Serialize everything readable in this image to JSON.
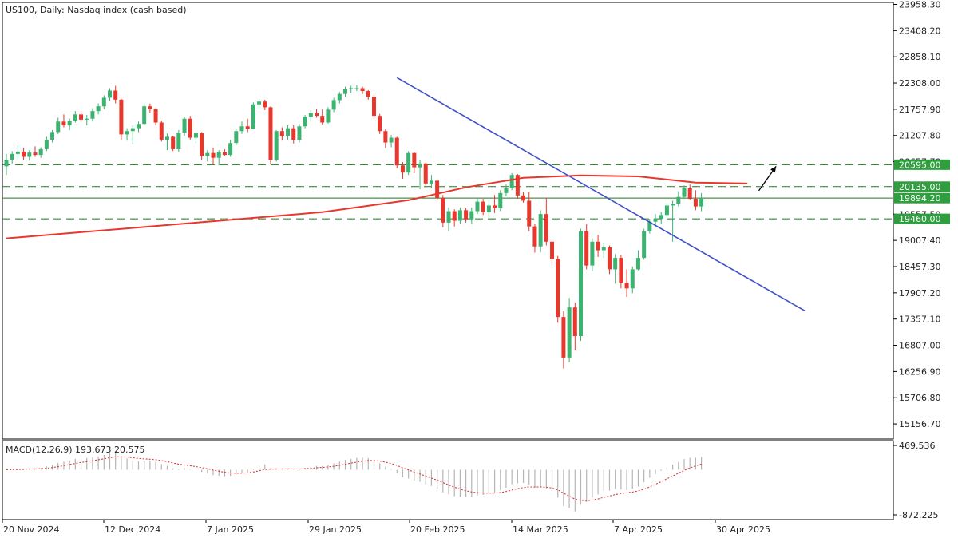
{
  "chart_data": [
    {
      "type": "candlestick",
      "title": "US100, Daily:  Nasdaq index (cash based)",
      "x_dates": [
        "20 Nov 2024",
        "12 Dec 2024",
        "7 Jan 2025",
        "29 Jan 2025",
        "20 Feb 2025",
        "14 Mar 2025",
        "7 Apr 2025",
        "30 Apr 2025"
      ],
      "y_ticks": [
        "23958.30",
        "23408.20",
        "22858.10",
        "22308.00",
        "21757.90",
        "21207.80",
        "20657.70",
        "20107.60",
        "19557.50",
        "19007.40",
        "18457.30",
        "17907.20",
        "17357.10",
        "16807.00",
        "16256.90",
        "15706.80",
        "15156.70"
      ],
      "ylim": [
        14840,
        24000
      ],
      "levels": [
        {
          "value": 20595.0,
          "label": "20595.00",
          "style": "dashed"
        },
        {
          "value": 20135.0,
          "label": "20135.00",
          "style": "dashed"
        },
        {
          "value": 19894.2,
          "label": "19894.20",
          "style": "solid"
        },
        {
          "value": 19460.0,
          "label": "19460.00",
          "style": "dashed"
        }
      ],
      "candles": [
        {
          "o": 20560,
          "h": 20820,
          "l": 20380,
          "c": 20700
        },
        {
          "o": 20700,
          "h": 20880,
          "l": 20620,
          "c": 20820
        },
        {
          "o": 20820,
          "h": 21000,
          "l": 20700,
          "c": 20870
        },
        {
          "o": 20870,
          "h": 20950,
          "l": 20700,
          "c": 20760
        },
        {
          "o": 20760,
          "h": 20900,
          "l": 20680,
          "c": 20850
        },
        {
          "o": 20850,
          "h": 20980,
          "l": 20760,
          "c": 20800
        },
        {
          "o": 20800,
          "h": 20960,
          "l": 20740,
          "c": 20920
        },
        {
          "o": 20920,
          "h": 21180,
          "l": 20880,
          "c": 21120
        },
        {
          "o": 21120,
          "h": 21320,
          "l": 21060,
          "c": 21280
        },
        {
          "o": 21280,
          "h": 21580,
          "l": 21240,
          "c": 21500
        },
        {
          "o": 21500,
          "h": 21650,
          "l": 21380,
          "c": 21420
        },
        {
          "o": 21420,
          "h": 21560,
          "l": 21320,
          "c": 21520
        },
        {
          "o": 21520,
          "h": 21720,
          "l": 21480,
          "c": 21650
        },
        {
          "o": 21650,
          "h": 21720,
          "l": 21500,
          "c": 21540
        },
        {
          "o": 21540,
          "h": 21640,
          "l": 21420,
          "c": 21560
        },
        {
          "o": 21560,
          "h": 21780,
          "l": 21500,
          "c": 21720
        },
        {
          "o": 21720,
          "h": 21880,
          "l": 21650,
          "c": 21820
        },
        {
          "o": 21820,
          "h": 22050,
          "l": 21760,
          "c": 22000
        },
        {
          "o": 22000,
          "h": 22200,
          "l": 21940,
          "c": 22150
        },
        {
          "o": 22150,
          "h": 22250,
          "l": 21880,
          "c": 21960
        },
        {
          "o": 21960,
          "h": 21980,
          "l": 21120,
          "c": 21230
        },
        {
          "o": 21230,
          "h": 21360,
          "l": 21100,
          "c": 21300
        },
        {
          "o": 21300,
          "h": 21420,
          "l": 21020,
          "c": 21360
        },
        {
          "o": 21360,
          "h": 21500,
          "l": 21280,
          "c": 21450
        },
        {
          "o": 21450,
          "h": 21880,
          "l": 21420,
          "c": 21820
        },
        {
          "o": 21820,
          "h": 21880,
          "l": 21680,
          "c": 21760
        },
        {
          "o": 21760,
          "h": 21780,
          "l": 21420,
          "c": 21480
        },
        {
          "o": 21480,
          "h": 21520,
          "l": 21080,
          "c": 21120
        },
        {
          "o": 21120,
          "h": 21250,
          "l": 20900,
          "c": 21180
        },
        {
          "o": 21180,
          "h": 21200,
          "l": 20880,
          "c": 20920
        },
        {
          "o": 20920,
          "h": 21320,
          "l": 20860,
          "c": 21270
        },
        {
          "o": 21270,
          "h": 21600,
          "l": 21200,
          "c": 21560
        },
        {
          "o": 21560,
          "h": 21620,
          "l": 21120,
          "c": 21160
        },
        {
          "o": 21160,
          "h": 21300,
          "l": 21050,
          "c": 21260
        },
        {
          "o": 21260,
          "h": 21280,
          "l": 20700,
          "c": 20780
        },
        {
          "o": 20780,
          "h": 20900,
          "l": 20660,
          "c": 20840
        },
        {
          "o": 20840,
          "h": 20950,
          "l": 20600,
          "c": 20740
        },
        {
          "o": 20740,
          "h": 20900,
          "l": 20580,
          "c": 20860
        },
        {
          "o": 20860,
          "h": 20920,
          "l": 20780,
          "c": 20800
        },
        {
          "o": 20800,
          "h": 21120,
          "l": 20760,
          "c": 21050
        },
        {
          "o": 21050,
          "h": 21340,
          "l": 21000,
          "c": 21300
        },
        {
          "o": 21300,
          "h": 21500,
          "l": 21240,
          "c": 21400
        },
        {
          "o": 21400,
          "h": 21560,
          "l": 21280,
          "c": 21350
        },
        {
          "o": 21350,
          "h": 21900,
          "l": 21340,
          "c": 21860
        },
        {
          "o": 21860,
          "h": 21980,
          "l": 21760,
          "c": 21920
        },
        {
          "o": 21920,
          "h": 21960,
          "l": 21740,
          "c": 21800
        },
        {
          "o": 21800,
          "h": 21820,
          "l": 20600,
          "c": 20700
        },
        {
          "o": 20700,
          "h": 21320,
          "l": 20660,
          "c": 21300
        },
        {
          "o": 21300,
          "h": 21380,
          "l": 21100,
          "c": 21200
        },
        {
          "o": 21200,
          "h": 21420,
          "l": 21120,
          "c": 21360
        },
        {
          "o": 21360,
          "h": 21420,
          "l": 21040,
          "c": 21120
        },
        {
          "o": 21120,
          "h": 21450,
          "l": 21060,
          "c": 21400
        },
        {
          "o": 21400,
          "h": 21640,
          "l": 21360,
          "c": 21600
        },
        {
          "o": 21600,
          "h": 21740,
          "l": 21500,
          "c": 21680
        },
        {
          "o": 21680,
          "h": 21760,
          "l": 21580,
          "c": 21620
        },
        {
          "o": 21620,
          "h": 21760,
          "l": 21440,
          "c": 21480
        },
        {
          "o": 21480,
          "h": 21800,
          "l": 21460,
          "c": 21750
        },
        {
          "o": 21750,
          "h": 22000,
          "l": 21700,
          "c": 21950
        },
        {
          "o": 21950,
          "h": 22120,
          "l": 21880,
          "c": 22080
        },
        {
          "o": 22080,
          "h": 22230,
          "l": 22020,
          "c": 22180
        },
        {
          "o": 22180,
          "h": 22250,
          "l": 22100,
          "c": 22200
        },
        {
          "o": 22200,
          "h": 22260,
          "l": 22140,
          "c": 22200
        },
        {
          "o": 22200,
          "h": 22230,
          "l": 22080,
          "c": 22140
        },
        {
          "o": 22140,
          "h": 22160,
          "l": 21960,
          "c": 22020
        },
        {
          "o": 22020,
          "h": 22060,
          "l": 21550,
          "c": 21620
        },
        {
          "o": 21620,
          "h": 21660,
          "l": 21240,
          "c": 21300
        },
        {
          "o": 21300,
          "h": 21340,
          "l": 20940,
          "c": 21060
        },
        {
          "o": 21060,
          "h": 21220,
          "l": 20960,
          "c": 21160
        },
        {
          "o": 21160,
          "h": 21180,
          "l": 20520,
          "c": 20580
        },
        {
          "o": 20580,
          "h": 20650,
          "l": 20300,
          "c": 20430
        },
        {
          "o": 20430,
          "h": 20880,
          "l": 20380,
          "c": 20840
        },
        {
          "o": 20840,
          "h": 20860,
          "l": 20420,
          "c": 20540
        },
        {
          "o": 20540,
          "h": 20700,
          "l": 20080,
          "c": 20620
        },
        {
          "o": 20620,
          "h": 20640,
          "l": 20150,
          "c": 20200
        },
        {
          "o": 20200,
          "h": 20380,
          "l": 20100,
          "c": 20260
        },
        {
          "o": 20260,
          "h": 20280,
          "l": 19850,
          "c": 19900
        },
        {
          "o": 19900,
          "h": 19960,
          "l": 19280,
          "c": 19380
        },
        {
          "o": 19380,
          "h": 19700,
          "l": 19200,
          "c": 19620
        },
        {
          "o": 19620,
          "h": 19660,
          "l": 19300,
          "c": 19420
        },
        {
          "o": 19420,
          "h": 19700,
          "l": 19360,
          "c": 19640
        },
        {
          "o": 19640,
          "h": 19680,
          "l": 19380,
          "c": 19450
        },
        {
          "o": 19450,
          "h": 19700,
          "l": 19350,
          "c": 19620
        },
        {
          "o": 19620,
          "h": 19900,
          "l": 19560,
          "c": 19820
        },
        {
          "o": 19820,
          "h": 19880,
          "l": 19540,
          "c": 19600
        },
        {
          "o": 19600,
          "h": 19860,
          "l": 19480,
          "c": 19740
        },
        {
          "o": 19740,
          "h": 19960,
          "l": 19580,
          "c": 19680
        },
        {
          "o": 19680,
          "h": 20060,
          "l": 19620,
          "c": 20000
        },
        {
          "o": 20000,
          "h": 20180,
          "l": 19940,
          "c": 20100
        },
        {
          "o": 20100,
          "h": 20420,
          "l": 20060,
          "c": 20380
        },
        {
          "o": 20380,
          "h": 20400,
          "l": 19880,
          "c": 19950
        },
        {
          "o": 19950,
          "h": 20020,
          "l": 19800,
          "c": 19840
        },
        {
          "o": 19840,
          "h": 20020,
          "l": 19200,
          "c": 19300
        },
        {
          "o": 19300,
          "h": 19360,
          "l": 18750,
          "c": 18880
        },
        {
          "o": 18880,
          "h": 19640,
          "l": 18760,
          "c": 19560
        },
        {
          "o": 19560,
          "h": 19900,
          "l": 18900,
          "c": 18980
        },
        {
          "o": 18980,
          "h": 19000,
          "l": 18480,
          "c": 18620
        },
        {
          "o": 18620,
          "h": 18680,
          "l": 17280,
          "c": 17400
        },
        {
          "o": 17400,
          "h": 17520,
          "l": 16320,
          "c": 16550
        },
        {
          "o": 16550,
          "h": 17800,
          "l": 16450,
          "c": 17600
        },
        {
          "o": 17600,
          "h": 17700,
          "l": 16700,
          "c": 17000
        },
        {
          "o": 17000,
          "h": 19250,
          "l": 16900,
          "c": 19200
        },
        {
          "o": 19200,
          "h": 19350,
          "l": 18400,
          "c": 18480
        },
        {
          "o": 18480,
          "h": 19050,
          "l": 18360,
          "c": 18980
        },
        {
          "o": 18980,
          "h": 19120,
          "l": 18660,
          "c": 18800
        },
        {
          "o": 18800,
          "h": 18960,
          "l": 18640,
          "c": 18860
        },
        {
          "o": 18860,
          "h": 18900,
          "l": 18300,
          "c": 18400
        },
        {
          "o": 18400,
          "h": 18720,
          "l": 18100,
          "c": 18640
        },
        {
          "o": 18640,
          "h": 18700,
          "l": 18000,
          "c": 18120
        },
        {
          "o": 18120,
          "h": 18400,
          "l": 17820,
          "c": 18000
        },
        {
          "o": 18000,
          "h": 18460,
          "l": 17900,
          "c": 18400
        },
        {
          "o": 18400,
          "h": 18800,
          "l": 18380,
          "c": 18640
        },
        {
          "o": 18640,
          "h": 19250,
          "l": 18600,
          "c": 19200
        },
        {
          "o": 19200,
          "h": 19460,
          "l": 19150,
          "c": 19400
        },
        {
          "o": 19400,
          "h": 19560,
          "l": 19300,
          "c": 19460
        },
        {
          "o": 19460,
          "h": 19600,
          "l": 19360,
          "c": 19540
        },
        {
          "o": 19540,
          "h": 19800,
          "l": 19480,
          "c": 19740
        },
        {
          "o": 19740,
          "h": 19840,
          "l": 18980,
          "c": 19780
        },
        {
          "o": 19780,
          "h": 20040,
          "l": 19720,
          "c": 19920
        },
        {
          "o": 19920,
          "h": 20160,
          "l": 19880,
          "c": 20100
        },
        {
          "o": 20100,
          "h": 20180,
          "l": 19860,
          "c": 19880
        },
        {
          "o": 19880,
          "h": 20060,
          "l": 19640,
          "c": 19720
        },
        {
          "o": 19720,
          "h": 20000,
          "l": 19620,
          "c": 19900
        }
      ],
      "moving_average": [
        {
          "i": 0,
          "v": 19050
        },
        {
          "i": 20,
          "v": 19250
        },
        {
          "i": 40,
          "v": 19450
        },
        {
          "i": 55,
          "v": 19600
        },
        {
          "i": 70,
          "v": 19850
        },
        {
          "i": 80,
          "v": 20120
        },
        {
          "i": 90,
          "v": 20320
        },
        {
          "i": 100,
          "v": 20370
        },
        {
          "i": 110,
          "v": 20350
        },
        {
          "i": 120,
          "v": 20220
        },
        {
          "i": 129,
          "v": 20200
        }
      ],
      "trendline": {
        "start": {
          "i": 68,
          "v": 22420
        },
        "end": {
          "i": 139,
          "v": 17530
        }
      },
      "arrow": {
        "from": {
          "i": 131,
          "v": 20050
        },
        "to": {
          "i": 134,
          "v": 20560
        }
      }
    },
    {
      "type": "bar",
      "title": "MACD(12,26,9) 193.673 20.575",
      "y_ticks": [
        "469.536",
        "-872.225"
      ],
      "ylim": [
        -872.225,
        469.536
      ]
    }
  ]
}
